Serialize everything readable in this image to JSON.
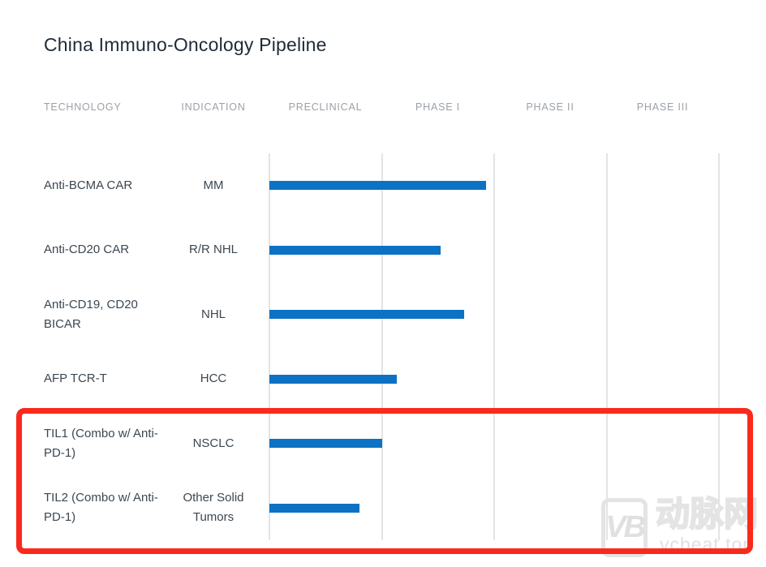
{
  "title": "China Immuno-Oncology Pipeline",
  "columns": [
    "TECHNOLOGY",
    "INDICATION",
    "PRECLINICAL",
    "PHASE I",
    "PHASE II",
    "PHASE III"
  ],
  "chart_data": {
    "type": "bar",
    "title": "China Immuno-Oncology Pipeline",
    "orientation": "horizontal",
    "stage_columns": [
      "PRECLINICAL",
      "PHASE I",
      "PHASE II",
      "PHASE III"
    ],
    "stage_axis_note": "bars start at beginning of PRECLINICAL; progress_stages measured in stage-column units (1 = full preclinical, 2 = end of Phase I)",
    "rows": [
      {
        "technology": "Anti-BCMA CAR",
        "indication": "MM",
        "progress_stages": 1.93,
        "highlighted": false
      },
      {
        "technology": "Anti-CD20 CAR",
        "indication": "R/R NHL",
        "progress_stages": 1.52,
        "highlighted": false
      },
      {
        "technology": "Anti-CD19, CD20 BICAR",
        "indication": "NHL",
        "progress_stages": 1.73,
        "highlighted": false
      },
      {
        "technology": "AFP TCR-T",
        "indication": "HCC",
        "progress_stages": 1.13,
        "highlighted": false
      },
      {
        "technology": "TIL1 (Combo w/ Anti-PD-1)",
        "indication": "NSCLC",
        "progress_stages": 1.0,
        "highlighted": true
      },
      {
        "technology": "TIL2 (Combo w/ Anti-PD-1)",
        "indication": "Other Solid Tumors",
        "progress_stages": 0.8,
        "highlighted": true
      }
    ],
    "bar_color": "#0d72c4",
    "highlight_box_color": "#f92a1c",
    "gridline_color": "#e1e5e6",
    "legend_position": "none",
    "grid": "vertical-only"
  },
  "watermark": {
    "logo_text": "VB",
    "brand_cn": "动脉网",
    "brand_url": "vcbeat.top"
  }
}
